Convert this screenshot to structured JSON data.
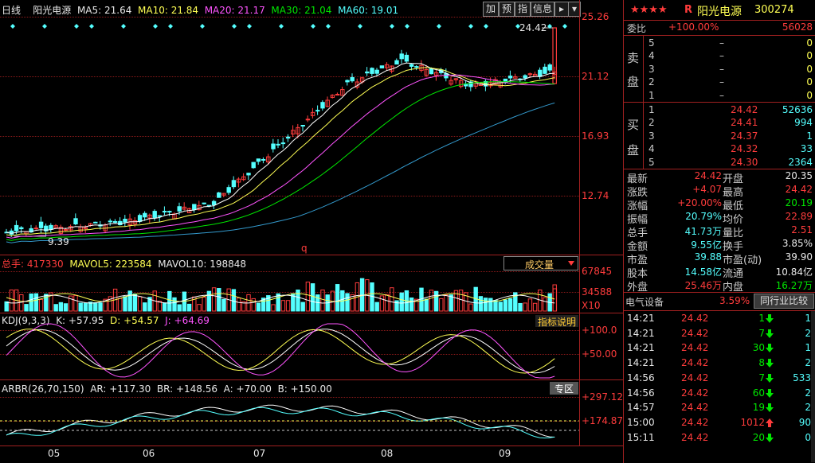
{
  "header": {
    "period": "日线",
    "name": "阳光电源",
    "ma5": "MA5: 21.64",
    "ma10": "MA10: 21.84",
    "ma20": "MA20: 21.17",
    "ma30": "MA30: 21.04",
    "ma60": "MA60: 19.01",
    "buttons": [
      "加",
      "预",
      "指",
      "信息"
    ]
  },
  "price_axis": [
    "25.26",
    "21.12",
    "16.93",
    "12.74"
  ],
  "annotations": {
    "high": "24.42",
    "low": "9.39",
    "marker": "q"
  },
  "volume": {
    "label_prefix": "总手:",
    "total": "417330",
    "mavol5": "MAVOL5: 223584",
    "mavol10": "MAVOL10: 198848",
    "selector": "成交量",
    "axis": [
      "67845",
      "34588"
    ],
    "unit": "X10"
  },
  "kdj": {
    "label": "KDJ(9,3,3)",
    "k": "K: +57.95",
    "d": "D: +54.57",
    "j": "J: +64.69",
    "help": "指标说明",
    "axis": [
      "+100.0",
      "+50.00"
    ]
  },
  "arbr": {
    "label": "ARBR(26,70,150)",
    "ar": "AR: +117.30",
    "br": "BR: +148.56",
    "a": "A: +70.00",
    "b": "B: +150.00",
    "zone": "专区",
    "axis": [
      "+297.12",
      "+174.87"
    ]
  },
  "months": [
    "05",
    "06",
    "07",
    "08",
    "09"
  ],
  "stock": {
    "stars": "★★★★",
    "badge": "R",
    "name": "阳光电源",
    "code": "300274"
  },
  "ratio": {
    "label": "委比",
    "pct": "+100.00%",
    "diff": "56028"
  },
  "sell": {
    "side": [
      "卖",
      "盘"
    ],
    "levels": [
      {
        "n": "5",
        "price": "–",
        "vol": "0"
      },
      {
        "n": "4",
        "price": "–",
        "vol": "0"
      },
      {
        "n": "3",
        "price": "–",
        "vol": "0"
      },
      {
        "n": "2",
        "price": "–",
        "vol": "0"
      },
      {
        "n": "1",
        "price": "–",
        "vol": "0"
      }
    ]
  },
  "buy": {
    "side": [
      "买",
      "盘"
    ],
    "levels": [
      {
        "n": "1",
        "price": "24.42",
        "vol": "52636"
      },
      {
        "n": "2",
        "price": "24.41",
        "vol": "994"
      },
      {
        "n": "3",
        "price": "24.37",
        "vol": "1"
      },
      {
        "n": "4",
        "price": "24.32",
        "vol": "33"
      },
      {
        "n": "5",
        "price": "24.30",
        "vol": "2364"
      }
    ]
  },
  "stats": [
    {
      "l1": "最新",
      "v1": "24.42",
      "l2": "开盘",
      "v2": "20.35"
    },
    {
      "l1": "涨跌",
      "v1": "+4.07",
      "l2": "最高",
      "v2": "24.42"
    },
    {
      "l1": "涨幅",
      "v1": "+20.00%",
      "l2": "最低",
      "v2": "20.19"
    },
    {
      "l1": "振幅",
      "v1": "20.79%",
      "l2": "均价",
      "v2": "22.89"
    },
    {
      "l1": "总手",
      "v1": "41.73万",
      "l2": "量比",
      "v2": "2.51"
    },
    {
      "l1": "金额",
      "v1": "9.55亿",
      "l2": "换手",
      "v2": "3.85%"
    },
    {
      "l1": "市盈",
      "v1": "39.88",
      "l2": "市盈(动)",
      "v2": "39.90"
    },
    {
      "l1": "股本",
      "v1": "14.58亿",
      "l2": "流通",
      "v2": "10.84亿"
    },
    {
      "l1": "外盘",
      "v1": "25.46万",
      "l2": "内盘",
      "v2": "16.27万"
    }
  ],
  "sector": {
    "name": "电气设备",
    "pct": "3.59%",
    "button": "同行业比较"
  },
  "ticks": [
    {
      "time": "14:21",
      "price": "24.42",
      "vol": "1",
      "dir": "down",
      "n": "1"
    },
    {
      "time": "14:21",
      "price": "24.42",
      "vol": "7",
      "dir": "down",
      "n": "2"
    },
    {
      "time": "14:21",
      "price": "24.42",
      "vol": "30",
      "dir": "down",
      "n": "1"
    },
    {
      "time": "14:21",
      "price": "24.42",
      "vol": "8",
      "dir": "down",
      "n": "2"
    },
    {
      "time": "14:56",
      "price": "24.42",
      "vol": "7",
      "dir": "down",
      "n": "533"
    },
    {
      "time": "14:56",
      "price": "24.42",
      "vol": "60",
      "dir": "down",
      "n": "2"
    },
    {
      "time": "14:57",
      "price": "24.42",
      "vol": "19",
      "dir": "down",
      "n": "2"
    },
    {
      "time": "15:00",
      "price": "24.42",
      "vol": "1012",
      "dir": "up",
      "n": "90"
    },
    {
      "time": "15:11",
      "price": "24.42",
      "vol": "20",
      "dir": "down",
      "n": "0"
    }
  ],
  "colors": {
    "up": "#ff3c3c",
    "down": "#54ffff",
    "ma5": "#ffffff",
    "ma10": "#ffff54",
    "ma20": "#ff54ff",
    "ma30": "#00e600",
    "ma60": "#3399cc"
  }
}
